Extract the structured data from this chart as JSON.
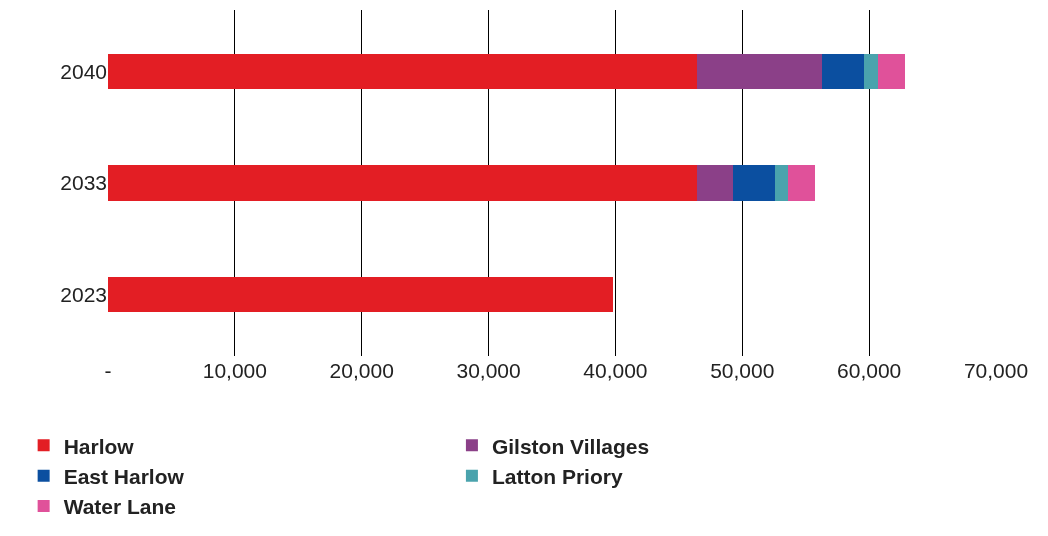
{
  "chart_data": {
    "type": "bar",
    "orientation": "horizontal",
    "stacked": true,
    "categories": [
      "2040",
      "2033",
      "2023"
    ],
    "series": [
      {
        "name": "Harlow",
        "color": "#e31e24",
        "values": [
          46400,
          46400,
          39800
        ]
      },
      {
        "name": "Gilston Villages",
        "color": "#8b4088",
        "values": [
          9900,
          2900,
          null
        ]
      },
      {
        "name": "East Harlow",
        "color": "#0b4fa0",
        "values": [
          3300,
          3300,
          null
        ]
      },
      {
        "name": "Latton Priory",
        "color": "#4aa3ad",
        "values": [
          1100,
          1000,
          null
        ]
      },
      {
        "name": "Water Lane",
        "color": "#e0519a",
        "values": [
          2100,
          2100,
          null
        ]
      }
    ],
    "xlim": [
      0,
      70000
    ],
    "xticks": [
      {
        "value": 0,
        "label": "-"
      },
      {
        "value": 10000,
        "label": "10,000"
      },
      {
        "value": 20000,
        "label": "20,000"
      },
      {
        "value": 30000,
        "label": "30,000"
      },
      {
        "value": 40000,
        "label": "40,000"
      },
      {
        "value": 50000,
        "label": "50,000"
      },
      {
        "value": 60000,
        "label": "60,000"
      },
      {
        "value": 70000,
        "label": "70,000"
      }
    ],
    "grid": "x",
    "legend": "bottom"
  }
}
